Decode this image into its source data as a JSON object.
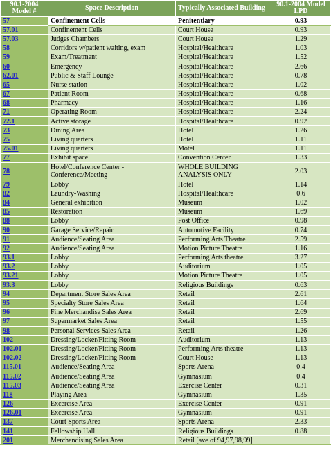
{
  "headers": {
    "model": "90.1-2004 Model #",
    "space": "Space Description",
    "building": "Typically Associated Building",
    "lpd": "90.1-2004 Model LPD"
  },
  "rows": [
    {
      "model": "57",
      "space": "Confinement Cells",
      "building": "Penitentiary",
      "lpd": "0.93"
    },
    {
      "model": "57.01",
      "space": "Confinement Cells",
      "building": "Court House",
      "lpd": "0.93"
    },
    {
      "model": "57.03",
      "space": "Judges Chambers",
      "building": "Court House",
      "lpd": "1.29"
    },
    {
      "model": "58",
      "space": "Corridors w/patient waiting, exam",
      "building": "Hospital/Healthcare",
      "lpd": "1.03"
    },
    {
      "model": "59",
      "space": "Exam/Treatment",
      "building": "Hospital/Healthcare",
      "lpd": "1.52"
    },
    {
      "model": "60",
      "space": "Emergency",
      "building": "Hospital/Healthcare",
      "lpd": "2.66"
    },
    {
      "model": "62.01",
      "space": "Public & Staff Lounge",
      "building": "Hospital/Healthcare",
      "lpd": "0.78"
    },
    {
      "model": "65",
      "space": "Nurse station",
      "building": "Hospital/Healthcare",
      "lpd": "1.02"
    },
    {
      "model": "67",
      "space": "Patient Room",
      "building": "Hospital/Healthcare",
      "lpd": "0.68"
    },
    {
      "model": "68",
      "space": "Pharmacy",
      "building": "Hospital/Healthcare",
      "lpd": "1.16"
    },
    {
      "model": "71",
      "space": "Operating Room",
      "building": "Hospital/Healthcare",
      "lpd": "2.24"
    },
    {
      "model": "72.1",
      "space": "Active storage",
      "building": "Hospital/Healthcare",
      "lpd": "0.92"
    },
    {
      "model": "73",
      "space": "Dining Area",
      "building": "Hotel",
      "lpd": "1.26"
    },
    {
      "model": "75",
      "space": "Living quarters",
      "building": "Hotel",
      "lpd": "1.11"
    },
    {
      "model": "75.01",
      "space": "Living quarters",
      "building": "Motel",
      "lpd": "1.11"
    },
    {
      "model": "77",
      "space": "Exhibit space",
      "building": "Convention Center",
      "lpd": "1.33"
    },
    {
      "model": "78",
      "space": "Hotel/Conference Center - Conference/Meeting",
      "building": "WHOLE BUILDING ANALYSIS ONLY",
      "lpd": "2.03",
      "tall": true
    },
    {
      "model": "79",
      "space": "Lobby",
      "building": "Hotel",
      "lpd": "1.14"
    },
    {
      "model": "82",
      "space": "Laundry-Washing",
      "building": "Hospital/Healthcare",
      "lpd": "0.6"
    },
    {
      "model": "84",
      "space": "General exhibition",
      "building": "Museum",
      "lpd": "1.02"
    },
    {
      "model": "85",
      "space": "Restoration",
      "building": "Museum",
      "lpd": "1.69"
    },
    {
      "model": "88",
      "space": "Lobby",
      "building": "Post Office",
      "lpd": "0.98"
    },
    {
      "model": "90",
      "space": "Garage Service/Repair",
      "building": "Automotive Facility",
      "lpd": "0.74"
    },
    {
      "model": "91",
      "space": "Audience/Seating Area",
      "building": "Performing Arts Theatre",
      "lpd": "2.59"
    },
    {
      "model": "92",
      "space": "Audience/Seating Area",
      "building": "Motion Picture Theatre",
      "lpd": "1.16"
    },
    {
      "model": "93.1",
      "space": "Lobby",
      "building": "Performing Arts theatre",
      "lpd": "3.27"
    },
    {
      "model": "93.2",
      "space": "Lobby",
      "building": "Auditorium",
      "lpd": "1.05"
    },
    {
      "model": "93.21",
      "space": "Lobby",
      "building": "Motion Picture Theatre",
      "lpd": "1.05"
    },
    {
      "model": "93.3",
      "space": "Lobby",
      "building": "Religious Buildings",
      "lpd": "0.63"
    },
    {
      "model": "94",
      "space": "Department Store Sales Area",
      "building": "Retail",
      "lpd": "2.61"
    },
    {
      "model": "95",
      "space": "Specialty Store Sales Area",
      "building": "Retail",
      "lpd": "1.64"
    },
    {
      "model": "96",
      "space": "Fine Merchandise Sales Area",
      "building": "Retail",
      "lpd": "2.69"
    },
    {
      "model": "97",
      "space": "Supermarket Sales Area",
      "building": "Retail",
      "lpd": "1.55"
    },
    {
      "model": "98",
      "space": "Personal Services Sales Area",
      "building": "Retail",
      "lpd": "1.26"
    },
    {
      "model": "102",
      "space": "Dressing/Locker/Fitting Room",
      "building": "Auditorium",
      "lpd": "1.13"
    },
    {
      "model": "102.01",
      "space": "Dressing/Locker/Fitting Room",
      "building": "Performing Arts theatre",
      "lpd": "1.13"
    },
    {
      "model": "102.02",
      "space": "Dressing/Locker/Fitting Room",
      "building": "Court House",
      "lpd": "1.13"
    },
    {
      "model": "115.01",
      "space": "Audience/Seating Area",
      "building": "Sports Arena",
      "lpd": "0.4"
    },
    {
      "model": "115.02",
      "space": "Audience/Seating Area",
      "building": "Gymnasium",
      "lpd": "0.4"
    },
    {
      "model": "115.03",
      "space": "Audience/Seating Area",
      "building": "Exercise Center",
      "lpd": "0.31"
    },
    {
      "model": "118",
      "space": "Playing Area",
      "building": "Gymnasium",
      "lpd": "1.35"
    },
    {
      "model": "126",
      "space": "Excercise Area",
      "building": "Exercise Center",
      "lpd": "0.91"
    },
    {
      "model": "126.01",
      "space": "Excercise Area",
      "building": "Gymnasium",
      "lpd": "0.91"
    },
    {
      "model": "137",
      "space": "Court Sports Area",
      "building": "Sports Arena",
      "lpd": "2.33"
    },
    {
      "model": "141",
      "space": "Fellowship Hall",
      "building": "Religious Buildings",
      "lpd": "0.88"
    },
    {
      "model": "201",
      "space": "Merchandising Sales Area",
      "building": "Retail [ave of 94,97,98,99]",
      "lpd": ""
    }
  ]
}
